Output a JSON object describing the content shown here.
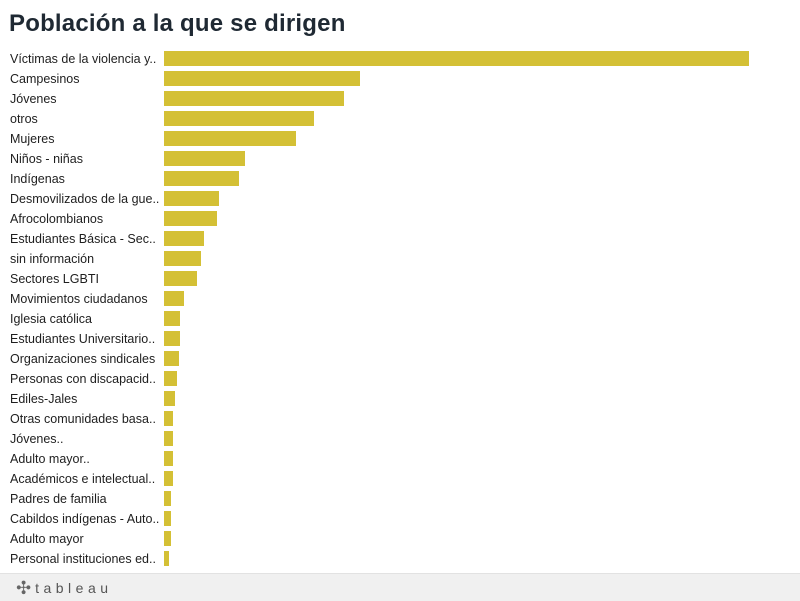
{
  "title": "Población a la que se dirigen",
  "footer": {
    "brand": "tableau"
  },
  "colors": {
    "bar": "#d4c035"
  },
  "chart_data": {
    "type": "bar",
    "orientation": "horizontal",
    "categories": [
      "Víctimas de la violencia y..",
      "Campesinos",
      "Jóvenes",
      "otros",
      "Mujeres",
      "Niños - niñas",
      "Indígenas",
      "Desmovilizados de la gue..",
      "Afrocolombianos",
      "Estudiantes Básica - Sec..",
      " sin información",
      "Sectores LGBTI",
      "Movimientos ciudadanos",
      "Iglesia católica",
      "Estudiantes Universitario..",
      "Organizaciones sindicales",
      "Personas con discapacid..",
      "Ediles-Jales",
      "Otras comunidades basa..",
      "Jóvenes..",
      "Adulto mayor..",
      "Académicos e intelectual..",
      "Padres de familia",
      "Cabildos indígenas - Auto..",
      "Adulto mayor",
      "Personal instituciones ed.."
    ],
    "values": [
      585,
      196,
      180,
      150,
      132,
      81,
      75,
      55,
      53,
      40,
      37,
      33,
      20,
      16,
      16,
      15,
      13,
      11,
      9,
      9,
      9,
      9,
      7,
      7,
      7,
      5
    ],
    "xlim": [
      0,
      620
    ],
    "grid": false,
    "legend": "none"
  }
}
